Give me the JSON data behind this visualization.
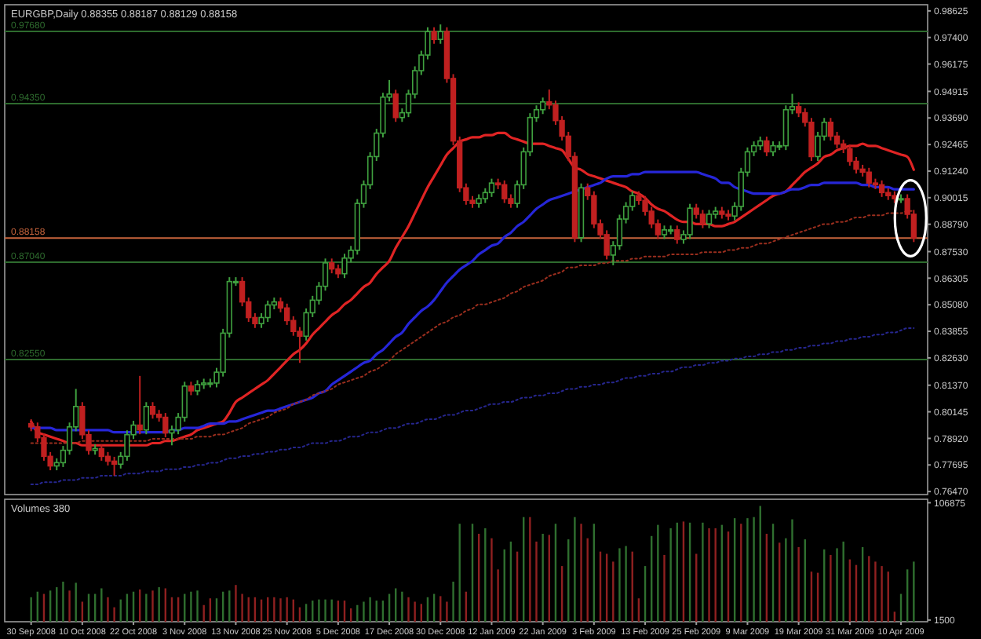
{
  "chart_data": [
    {
      "type": "candlestick",
      "title": "EURGBP,Daily 0.88355 0.88187 0.88129 0.88158",
      "categories": [
        null,
        null,
        null,
        null,
        null,
        null,
        null,
        null,
        null,
        null,
        null,
        null,
        null,
        null,
        null,
        null,
        null,
        null,
        null,
        null,
        null,
        null,
        null,
        null,
        null,
        null,
        null,
        null,
        null,
        null,
        null,
        null,
        null,
        null,
        null,
        null,
        null,
        null,
        null,
        null,
        null,
        null,
        null,
        null,
        null,
        null,
        null,
        null,
        null,
        null,
        null,
        null,
        null,
        null,
        null,
        null,
        null,
        null,
        null,
        null,
        null,
        null,
        null,
        null,
        null,
        null,
        null,
        null,
        null,
        null,
        null,
        null,
        null,
        null,
        null,
        null,
        null,
        null,
        null,
        null,
        null,
        null,
        null,
        null,
        null,
        null,
        null,
        null,
        null,
        null,
        null,
        null,
        null,
        null,
        null,
        null,
        null,
        null,
        null,
        null,
        null,
        null,
        null,
        null,
        null,
        null,
        null,
        null,
        null,
        null,
        null,
        null,
        null,
        null,
        null,
        null,
        null,
        null,
        null,
        null,
        null,
        null,
        null,
        null,
        null,
        null,
        null,
        null,
        null,
        null,
        null,
        null,
        null,
        null,
        null,
        null,
        null,
        null,
        null
      ],
      "ohlc": [
        [
          0.796,
          0.798,
          0.7925,
          0.7945
        ],
        [
          0.7945,
          0.7965,
          0.7875,
          0.7895
        ],
        [
          0.7895,
          0.7915,
          0.7789,
          0.7809
        ],
        [
          0.7809,
          0.7829,
          0.7745,
          0.7765
        ],
        [
          0.7765,
          0.78,
          0.7745,
          0.778
        ],
        [
          0.778,
          0.7857,
          0.776,
          0.7837
        ],
        [
          0.7837,
          0.7965,
          0.7817,
          0.7945
        ],
        [
          0.7945,
          0.812,
          0.7925,
          0.8039
        ],
        [
          0.8039,
          0.8059,
          0.7889,
          0.7909
        ],
        [
          0.7909,
          0.7929,
          0.7817,
          0.7837
        ],
        [
          0.7837,
          0.7865,
          0.7817,
          0.7845
        ],
        [
          0.7845,
          0.7865,
          0.7789,
          0.7809
        ],
        [
          0.7809,
          0.7829,
          0.7767,
          0.7787
        ],
        [
          0.7787,
          0.7807,
          0.772,
          0.7773
        ],
        [
          0.7773,
          0.7829,
          0.7753,
          0.7809
        ],
        [
          0.7809,
          0.7929,
          0.7789,
          0.7909
        ],
        [
          0.7909,
          0.7973,
          0.7889,
          0.7953
        ],
        [
          0.7953,
          0.818,
          0.7911,
          0.7931
        ],
        [
          0.7931,
          0.8059,
          0.7911,
          0.8039
        ],
        [
          0.8039,
          0.8059,
          0.7983,
          0.8003
        ],
        [
          0.8003,
          0.8023,
          0.7969,
          0.7989
        ],
        [
          0.7989,
          0.8009,
          0.7897,
          0.7917
        ],
        [
          0.7917,
          0.7951,
          0.786,
          0.7931
        ],
        [
          0.7931,
          0.8009,
          0.7911,
          0.7989
        ],
        [
          0.7989,
          0.8153,
          0.7969,
          0.8133
        ],
        [
          0.8133,
          0.8153,
          0.8091,
          0.8111
        ],
        [
          0.8111,
          0.816,
          0.8091,
          0.814
        ],
        [
          0.814,
          0.8167,
          0.812,
          0.8147
        ],
        [
          0.8147,
          0.8167,
          0.8127,
          0.8147
        ],
        [
          0.8147,
          0.8217,
          0.8127,
          0.8197
        ],
        [
          0.8197,
          0.8397,
          0.8177,
          0.8377
        ],
        [
          0.8377,
          0.8635,
          0.8357,
          0.8615
        ],
        [
          0.8615,
          0.8635,
          0.8595,
          0.8615
        ],
        [
          0.8615,
          0.8635,
          0.8501,
          0.8521
        ],
        [
          0.8521,
          0.8541,
          0.8429,
          0.8449
        ],
        [
          0.8449,
          0.8469,
          0.8401,
          0.8421
        ],
        [
          0.8421,
          0.8469,
          0.8401,
          0.8449
        ],
        [
          0.8449,
          0.8527,
          0.8429,
          0.8507
        ],
        [
          0.8507,
          0.8541,
          0.8487,
          0.8521
        ],
        [
          0.8521,
          0.8541,
          0.8473,
          0.8493
        ],
        [
          0.8493,
          0.8513,
          0.8415,
          0.8435
        ],
        [
          0.8435,
          0.8455,
          0.8365,
          0.8385
        ],
        [
          0.8385,
          0.8405,
          0.824,
          0.8363
        ],
        [
          0.8363,
          0.8491,
          0.8343,
          0.8471
        ],
        [
          0.8471,
          0.8549,
          0.8451,
          0.8529
        ],
        [
          0.8529,
          0.8613,
          0.8509,
          0.8593
        ],
        [
          0.8593,
          0.8721,
          0.8573,
          0.8701
        ],
        [
          0.8701,
          0.8721,
          0.8653,
          0.8673
        ],
        [
          0.8673,
          0.8693,
          0.8631,
          0.8651
        ],
        [
          0.8651,
          0.8743,
          0.8631,
          0.8723
        ],
        [
          0.8723,
          0.8779,
          0.8703,
          0.8759
        ],
        [
          0.8759,
          0.8995,
          0.8739,
          0.8975
        ],
        [
          0.8975,
          0.9081,
          0.8955,
          0.9061
        ],
        [
          0.9061,
          0.9211,
          0.9041,
          0.9191
        ],
        [
          0.9191,
          0.9319,
          0.9171,
          0.9299
        ],
        [
          0.9299,
          0.9485,
          0.9279,
          0.9465
        ],
        [
          0.9465,
          0.9544,
          0.9445,
          0.9479
        ],
        [
          0.9479,
          0.9499,
          0.9351,
          0.9371
        ],
        [
          0.9371,
          0.9413,
          0.9351,
          0.9393
        ],
        [
          0.9393,
          0.9499,
          0.9373,
          0.9479
        ],
        [
          0.9479,
          0.9607,
          0.9459,
          0.9587
        ],
        [
          0.9587,
          0.9679,
          0.9567,
          0.9659
        ],
        [
          0.9659,
          0.9787,
          0.9639,
          0.9767
        ],
        [
          0.9767,
          0.9787,
          0.9711,
          0.9731
        ],
        [
          0.9731,
          0.98,
          0.9711,
          0.9767
        ],
        [
          0.9767,
          0.9787,
          0.9531,
          0.9551
        ],
        [
          0.9551,
          0.9571,
          0.9243,
          0.9263
        ],
        [
          0.9263,
          0.9283,
          0.9027,
          0.9047
        ],
        [
          0.9047,
          0.9067,
          0.8969,
          0.8989
        ],
        [
          0.8989,
          0.9009,
          0.8955,
          0.8975
        ],
        [
          0.8975,
          0.9017,
          0.8955,
          0.8997
        ],
        [
          0.8997,
          0.9045,
          0.8977,
          0.9025
        ],
        [
          0.9025,
          0.9089,
          0.9005,
          0.9069
        ],
        [
          0.9069,
          0.9089,
          0.9041,
          0.9061
        ],
        [
          0.9061,
          0.9081,
          0.8977,
          0.8997
        ],
        [
          0.8997,
          0.9017,
          0.8955,
          0.8975
        ],
        [
          0.8975,
          0.9081,
          0.8955,
          0.9061
        ],
        [
          0.9061,
          0.9233,
          0.9041,
          0.9213
        ],
        [
          0.9213,
          0.9391,
          0.9193,
          0.9371
        ],
        [
          0.9371,
          0.9427,
          0.9351,
          0.9407
        ],
        [
          0.9407,
          0.9463,
          0.9387,
          0.9443
        ],
        [
          0.9443,
          0.95,
          0.9409,
          0.9429
        ],
        [
          0.9429,
          0.9449,
          0.9337,
          0.9357
        ],
        [
          0.9357,
          0.9377,
          0.9265,
          0.9285
        ],
        [
          0.9285,
          0.9305,
          0.9171,
          0.9191
        ],
        [
          0.9191,
          0.9211,
          0.8797,
          0.8817
        ],
        [
          0.8817,
          0.9067,
          0.8797,
          0.9047
        ],
        [
          0.9047,
          0.9067,
          0.8991,
          0.9011
        ],
        [
          0.9011,
          0.9031,
          0.8861,
          0.8881
        ],
        [
          0.8881,
          0.8901,
          0.8811,
          0.8831
        ],
        [
          0.8831,
          0.8851,
          0.8717,
          0.8737
        ],
        [
          0.8737,
          0.8801,
          0.869,
          0.8781
        ],
        [
          0.8781,
          0.8923,
          0.8761,
          0.8903
        ],
        [
          0.8903,
          0.8981,
          0.8883,
          0.8961
        ],
        [
          0.8961,
          0.9031,
          0.8941,
          0.9011
        ],
        [
          0.9011,
          0.9031,
          0.8969,
          0.8989
        ],
        [
          0.8989,
          0.9009,
          0.8919,
          0.8939
        ],
        [
          0.8939,
          0.8959,
          0.8861,
          0.8881
        ],
        [
          0.8881,
          0.8901,
          0.8811,
          0.8831
        ],
        [
          0.8831,
          0.8873,
          0.8811,
          0.8853
        ],
        [
          0.8853,
          0.8873,
          0.8833,
          0.8853
        ],
        [
          0.8853,
          0.8873,
          0.8789,
          0.8809
        ],
        [
          0.8809,
          0.8851,
          0.8789,
          0.8831
        ],
        [
          0.8831,
          0.8973,
          0.8811,
          0.8953
        ],
        [
          0.8953,
          0.8973,
          0.8905,
          0.8925
        ],
        [
          0.8925,
          0.8945,
          0.8861,
          0.8881
        ],
        [
          0.8881,
          0.8945,
          0.8861,
          0.8925
        ],
        [
          0.8925,
          0.8959,
          0.8905,
          0.8939
        ],
        [
          0.8939,
          0.8959,
          0.8905,
          0.8925
        ],
        [
          0.8925,
          0.8945,
          0.8897,
          0.8917
        ],
        [
          0.8917,
          0.8981,
          0.8897,
          0.8961
        ],
        [
          0.8961,
          0.9139,
          0.8941,
          0.9119
        ],
        [
          0.9119,
          0.9233,
          0.9099,
          0.9213
        ],
        [
          0.9213,
          0.9261,
          0.9193,
          0.9241
        ],
        [
          0.9241,
          0.9283,
          0.9221,
          0.9263
        ],
        [
          0.9263,
          0.9283,
          0.9193,
          0.9213
        ],
        [
          0.9213,
          0.9261,
          0.9193,
          0.9241
        ],
        [
          0.9241,
          0.9261,
          0.9221,
          0.9241
        ],
        [
          0.9241,
          0.9427,
          0.9221,
          0.9407
        ],
        [
          0.9407,
          0.948,
          0.9387,
          0.9421
        ],
        [
          0.9421,
          0.9441,
          0.9373,
          0.9393
        ],
        [
          0.9393,
          0.9413,
          0.9329,
          0.9349
        ],
        [
          0.9349,
          0.9369,
          0.9171,
          0.9191
        ],
        [
          0.9191,
          0.9305,
          0.9171,
          0.9285
        ],
        [
          0.9285,
          0.9369,
          0.9265,
          0.9349
        ],
        [
          0.9349,
          0.9369,
          0.9265,
          0.9285
        ],
        [
          0.9285,
          0.9305,
          0.9229,
          0.9249
        ],
        [
          0.9249,
          0.9269,
          0.9207,
          0.9227
        ],
        [
          0.9227,
          0.9247,
          0.9149,
          0.9169
        ],
        [
          0.9169,
          0.9189,
          0.9113,
          0.9133
        ],
        [
          0.9133,
          0.9153,
          0.9099,
          0.9119
        ],
        [
          0.9119,
          0.9139,
          0.9049,
          0.9069
        ],
        [
          0.9069,
          0.9089,
          0.9041,
          0.9061
        ],
        [
          0.9061,
          0.9081,
          0.9005,
          0.9025
        ],
        [
          0.9025,
          0.9045,
          0.8991,
          0.9011
        ],
        [
          0.9011,
          0.9031,
          0.8977,
          0.8997
        ],
        [
          0.8997,
          0.9017,
          0.8977,
          0.8997
        ],
        [
          0.8997,
          0.9017,
          0.8905,
          0.8925
        ],
        [
          0.8925,
          0.8945,
          0.8797,
          0.8816
        ]
      ],
      "series": [
        {
          "type": "line",
          "color": "#e02424",
          "line_style": "solid",
          "values": [
            0.797,
            0.792,
            0.791,
            0.79,
            0.789,
            0.788,
            0.787,
            0.787,
            0.786,
            0.786,
            0.786,
            0.786,
            0.786,
            0.786,
            0.786,
            0.786,
            0.786,
            0.786,
            0.786,
            0.787,
            0.787,
            0.788,
            0.788,
            0.789,
            0.79,
            0.791,
            0.793,
            0.794,
            0.795,
            0.796,
            0.797,
            0.801,
            0.806,
            0.808,
            0.81,
            0.812,
            0.814,
            0.816,
            0.819,
            0.822,
            0.825,
            0.828,
            0.83,
            0.833,
            0.837,
            0.84,
            0.843,
            0.846,
            0.848,
            0.851,
            0.853,
            0.856,
            0.859,
            0.861,
            0.865,
            0.868,
            0.871,
            0.877,
            0.882,
            0.887,
            0.893,
            0.899,
            0.905,
            0.91,
            0.915,
            0.92,
            0.923,
            0.926,
            0.927,
            0.928,
            0.928,
            0.929,
            0.929,
            0.93,
            0.93,
            0.928,
            0.927,
            0.926,
            0.925,
            0.925,
            0.925,
            0.924,
            0.923,
            0.922,
            0.918,
            0.914,
            0.913,
            0.911,
            0.91,
            0.909,
            0.908,
            0.907,
            0.906,
            0.905,
            0.903,
            0.902,
            0.9,
            0.897,
            0.895,
            0.894,
            0.892,
            0.89,
            0.889,
            0.889,
            0.888,
            0.888,
            0.888,
            0.887,
            0.887,
            0.888,
            0.889,
            0.891,
            0.893,
            0.895,
            0.897,
            0.899,
            0.901,
            0.902,
            0.903,
            0.906,
            0.909,
            0.912,
            0.914,
            0.916,
            0.919,
            0.92,
            0.922,
            0.923,
            0.924,
            0.924,
            0.925,
            0.924,
            0.924,
            0.923,
            0.922,
            0.921,
            0.92,
            0.919,
            0.913
          ]
        },
        {
          "type": "line",
          "color": "#2626d8",
          "line_style": "solid",
          "values": [
            0.794,
            0.794,
            0.794,
            0.794,
            0.793,
            0.793,
            0.793,
            0.793,
            0.793,
            0.793,
            0.793,
            0.793,
            0.793,
            0.792,
            0.792,
            0.792,
            0.792,
            0.792,
            0.792,
            0.792,
            0.792,
            0.792,
            0.793,
            0.793,
            0.794,
            0.794,
            0.794,
            0.795,
            0.796,
            0.796,
            0.796,
            0.797,
            0.797,
            0.798,
            0.799,
            0.8,
            0.801,
            0.802,
            0.802,
            0.803,
            0.804,
            0.805,
            0.806,
            0.807,
            0.808,
            0.81,
            0.811,
            0.814,
            0.816,
            0.818,
            0.82,
            0.822,
            0.824,
            0.825,
            0.828,
            0.83,
            0.833,
            0.836,
            0.838,
            0.842,
            0.845,
            0.848,
            0.85,
            0.853,
            0.857,
            0.861,
            0.864,
            0.867,
            0.869,
            0.871,
            0.874,
            0.876,
            0.878,
            0.879,
            0.882,
            0.884,
            0.887,
            0.889,
            0.892,
            0.895,
            0.897,
            0.899,
            0.9,
            0.901,
            0.902,
            0.903,
            0.904,
            0.905,
            0.906,
            0.907,
            0.909,
            0.91,
            0.91,
            0.91,
            0.911,
            0.911,
            0.912,
            0.912,
            0.912,
            0.912,
            0.912,
            0.912,
            0.912,
            0.912,
            0.912,
            0.911,
            0.91,
            0.909,
            0.907,
            0.907,
            0.905,
            0.904,
            0.903,
            0.902,
            0.902,
            0.902,
            0.902,
            0.902,
            0.903,
            0.904,
            0.904,
            0.905,
            0.906,
            0.906,
            0.907,
            0.907,
            0.907,
            0.907,
            0.907,
            0.907,
            0.906,
            0.906,
            0.905,
            0.905,
            0.905,
            0.904,
            0.904,
            0.904,
            0.904
          ]
        },
        {
          "type": "line",
          "color": "#9a2e1e",
          "line_style": "dotted",
          "values": [
            0.787,
            0.787,
            0.787,
            0.787,
            0.787,
            0.787,
            0.787,
            0.787,
            0.788,
            0.788,
            0.788,
            0.788,
            0.788,
            0.788,
            0.788,
            0.788,
            0.788,
            0.788,
            0.788,
            0.789,
            0.789,
            0.789,
            0.789,
            0.789,
            0.789,
            0.789,
            0.79,
            0.79,
            0.79,
            0.791,
            0.791,
            0.792,
            0.793,
            0.794,
            0.796,
            0.797,
            0.798,
            0.799,
            0.801,
            0.802,
            0.803,
            0.805,
            0.806,
            0.807,
            0.809,
            0.81,
            0.811,
            0.812,
            0.814,
            0.815,
            0.816,
            0.817,
            0.818,
            0.82,
            0.821,
            0.823,
            0.825,
            0.828,
            0.83,
            0.832,
            0.834,
            0.836,
            0.838,
            0.84,
            0.842,
            0.843,
            0.845,
            0.846,
            0.848,
            0.849,
            0.851,
            0.851,
            0.852,
            0.853,
            0.854,
            0.856,
            0.857,
            0.859,
            0.86,
            0.861,
            0.862,
            0.864,
            0.865,
            0.866,
            0.868,
            0.868,
            0.869,
            0.869,
            0.869,
            0.87,
            0.87,
            0.871,
            0.871,
            0.871,
            0.872,
            0.872,
            0.873,
            0.873,
            0.873,
            0.873,
            0.874,
            0.874,
            0.874,
            0.874,
            0.874,
            0.875,
            0.875,
            0.875,
            0.875,
            0.876,
            0.876,
            0.877,
            0.877,
            0.878,
            0.879,
            0.879,
            0.88,
            0.881,
            0.882,
            0.883,
            0.884,
            0.885,
            0.886,
            0.887,
            0.888,
            0.888,
            0.889,
            0.889,
            0.89,
            0.891,
            0.891,
            0.892,
            0.892,
            0.892,
            0.893,
            0.893,
            0.893,
            0.894,
            0.894
          ]
        },
        {
          "type": "line",
          "color": "#26268e",
          "line_style": "dotted",
          "values": [
            0.768,
            0.768,
            0.769,
            0.769,
            0.769,
            0.77,
            0.77,
            0.77,
            0.771,
            0.771,
            0.771,
            0.772,
            0.772,
            0.772,
            0.772,
            0.773,
            0.773,
            0.773,
            0.774,
            0.774,
            0.774,
            0.775,
            0.775,
            0.775,
            0.776,
            0.776,
            0.777,
            0.777,
            0.778,
            0.778,
            0.779,
            0.78,
            0.78,
            0.781,
            0.781,
            0.782,
            0.782,
            0.783,
            0.783,
            0.784,
            0.784,
            0.785,
            0.785,
            0.786,
            0.787,
            0.787,
            0.787,
            0.788,
            0.788,
            0.789,
            0.79,
            0.79,
            0.791,
            0.792,
            0.792,
            0.793,
            0.794,
            0.794,
            0.795,
            0.796,
            0.796,
            0.797,
            0.798,
            0.798,
            0.799,
            0.8,
            0.8,
            0.801,
            0.802,
            0.802,
            0.803,
            0.804,
            0.805,
            0.805,
            0.806,
            0.806,
            0.807,
            0.808,
            0.808,
            0.809,
            0.809,
            0.81,
            0.81,
            0.811,
            0.812,
            0.812,
            0.813,
            0.813,
            0.814,
            0.814,
            0.815,
            0.815,
            0.816,
            0.817,
            0.817,
            0.818,
            0.818,
            0.819,
            0.819,
            0.82,
            0.82,
            0.821,
            0.822,
            0.822,
            0.823,
            0.823,
            0.824,
            0.824,
            0.825,
            0.825,
            0.826,
            0.826,
            0.827,
            0.827,
            0.828,
            0.828,
            0.829,
            0.829,
            0.83,
            0.83,
            0.831,
            0.831,
            0.832,
            0.832,
            0.833,
            0.833,
            0.834,
            0.834,
            0.835,
            0.835,
            0.836,
            0.836,
            0.837,
            0.837,
            0.838,
            0.838,
            0.839,
            0.84,
            0.84
          ]
        }
      ],
      "ylim": [
        0.7633,
        0.9891
      ],
      "yticks": [
        {
          "value": 0.98625,
          "label": "0.98625"
        },
        {
          "value": 0.974,
          "label": "0.97400"
        },
        {
          "value": 0.96175,
          "label": "0.96175"
        },
        {
          "value": 0.94915,
          "label": "0.94915"
        },
        {
          "value": 0.9369,
          "label": "0.93690"
        },
        {
          "value": 0.92465,
          "label": "0.92465"
        },
        {
          "value": 0.9124,
          "label": "0.91240"
        },
        {
          "value": 0.90015,
          "label": "0.90015"
        },
        {
          "value": 0.8879,
          "label": "0.88790"
        },
        {
          "value": 0.8753,
          "label": "0.87530"
        },
        {
          "value": 0.86305,
          "label": "0.86305"
        },
        {
          "value": 0.8508,
          "label": "0.85080"
        },
        {
          "value": 0.83855,
          "label": "0.83855"
        },
        {
          "value": 0.8263,
          "label": "0.82630"
        },
        {
          "value": 0.8137,
          "label": "0.81370"
        },
        {
          "value": 0.80145,
          "label": "0.80145"
        },
        {
          "value": 0.7892,
          "label": "0.78920"
        },
        {
          "value": 0.77695,
          "label": "0.77695"
        },
        {
          "value": 0.7647,
          "label": "0.76470"
        }
      ],
      "ref_lines": [
        {
          "axis": "y",
          "value": 0.9768,
          "label": "0.97680",
          "color": "#2e6b2e"
        },
        {
          "axis": "y",
          "value": 0.9435,
          "label": "0.94350",
          "color": "#2e6b2e"
        },
        {
          "axis": "y",
          "value": 0.8704,
          "label": "0.87040",
          "color": "#2e6b2e"
        },
        {
          "axis": "y",
          "value": 0.8255,
          "label": "0.82550",
          "color": "#2e6b2e"
        },
        {
          "axis": "y",
          "value": 0.88158,
          "label": "0.88158",
          "color": "#c8643c"
        }
      ]
    },
    {
      "type": "bar",
      "title": "Volumes 380",
      "categories": [
        "30 Sep 2008",
        null,
        null,
        null,
        null,
        null,
        null,
        null,
        "10 Oct 2008",
        null,
        null,
        null,
        null,
        null,
        null,
        null,
        "22 Oct 2008",
        null,
        null,
        null,
        null,
        null,
        null,
        null,
        "3 Nov 2008",
        null,
        null,
        null,
        null,
        null,
        null,
        null,
        "13 Nov 2008",
        null,
        null,
        null,
        null,
        null,
        null,
        null,
        "25 Nov 2008",
        null,
        null,
        null,
        null,
        null,
        null,
        null,
        "5 Dec 2008",
        null,
        null,
        null,
        null,
        null,
        null,
        null,
        "17 Dec 2008",
        null,
        null,
        null,
        null,
        null,
        null,
        null,
        "30 Dec 2008",
        null,
        null,
        null,
        null,
        null,
        null,
        null,
        "12 Jan 2009",
        null,
        null,
        null,
        null,
        null,
        null,
        null,
        "22 Jan 2009",
        null,
        null,
        null,
        null,
        null,
        null,
        null,
        "3 Feb 2009",
        null,
        null,
        null,
        null,
        null,
        null,
        null,
        "13 Feb 2009",
        null,
        null,
        null,
        null,
        null,
        null,
        null,
        "25 Feb 2009",
        null,
        null,
        null,
        null,
        null,
        null,
        null,
        "9 Mar 2009",
        null,
        null,
        null,
        null,
        null,
        null,
        null,
        "19 Mar 2009",
        null,
        null,
        null,
        null,
        null,
        null,
        null,
        "31 Mar 2009",
        null,
        null,
        null,
        null,
        null,
        null,
        null,
        "10 Apr 2009",
        null,
        null
      ],
      "values": [
        22000,
        27000,
        25000,
        28000,
        31000,
        36000,
        28000,
        35000,
        18000,
        25000,
        25000,
        30000,
        22000,
        13000,
        20000,
        25000,
        27000,
        29000,
        25000,
        28000,
        31000,
        30000,
        22000,
        22000,
        25000,
        27000,
        28000,
        15000,
        21000,
        21000,
        27000,
        28000,
        33000,
        25000,
        22000,
        22000,
        20000,
        22000,
        22000,
        21000,
        22000,
        20000,
        13000,
        16000,
        19000,
        20000,
        20000,
        20000,
        19000,
        19000,
        12000,
        15000,
        18000,
        22000,
        19000,
        19000,
        25000,
        30000,
        27000,
        22000,
        18000,
        16000,
        22000,
        25000,
        23000,
        18000,
        36000,
        88000,
        27000,
        88000,
        79000,
        84000,
        75000,
        47000,
        65000,
        72000,
        63000,
        94000,
        94000,
        72000,
        79000,
        78000,
        88000,
        50000,
        74000,
        94000,
        88000,
        75000,
        88000,
        63000,
        61000,
        54000,
        66000,
        68000,
        63000,
        21000,
        50000,
        77000,
        87000,
        60000,
        84000,
        89000,
        90000,
        89000,
        61000,
        89000,
        84000,
        84000,
        87000,
        81000,
        93000,
        88000,
        93000,
        94000,
        104000,
        79000,
        88000,
        71000,
        75000,
        92000,
        67000,
        74000,
        45000,
        44000,
        65000,
        60000,
        66000,
        72000,
        56000,
        51000,
        67000,
        59000,
        54000,
        50000,
        45000,
        9000,
        25000,
        47000,
        54000
      ],
      "colors": [
        "#2f6f2f",
        "#2f6f2f",
        "#8f2020",
        "#2f6f2f",
        "#2f6f2f",
        "#2f6f2f",
        "#8f2020",
        "#2f6f2f",
        "#8f2020",
        "#2f6f2f",
        "#2f6f2f",
        "#2f6f2f",
        "#8f2020",
        "#8f2020",
        "#2f6f2f",
        "#2f6f2f",
        "#2f6f2f",
        "#8f2020",
        "#2f6f2f",
        "#8f2020",
        "#2f6f2f",
        "#8f2020",
        "#8f2020",
        "#8f2020",
        "#2f6f2f",
        "#2f6f2f",
        "#2f6f2f",
        "#8f2020",
        "#8f2020",
        "#2f6f2f",
        "#2f6f2f",
        "#2f6f2f",
        "#8f2020",
        "#8f2020",
        "#8f2020",
        "#8f2020",
        "#8f2020",
        "#8f2020",
        "#8f2020",
        "#8f2020",
        "#8f2020",
        "#8f2020",
        "#8f2020",
        "#2f6f2f",
        "#2f6f2f",
        "#2f6f2f",
        "#2f6f2f",
        "#2f6f2f",
        "#8f2020",
        "#8f2020",
        "#8f2020",
        "#2f6f2f",
        "#2f6f2f",
        "#2f6f2f",
        "#2f6f2f",
        "#2f6f2f",
        "#2f6f2f",
        "#2f6f2f",
        "#2f6f2f",
        "#8f2020",
        "#8f2020",
        "#8f2020",
        "#2f6f2f",
        "#2f6f2f",
        "#8f2020",
        "#8f2020",
        "#2f6f2f",
        "#2f6f2f",
        "#8f2020",
        "#2f6f2f",
        "#8f2020",
        "#2f6f2f",
        "#8f2020",
        "#8f2020",
        "#2f6f2f",
        "#2f6f2f",
        "#8f2020",
        "#2f6f2f",
        "#8f2020",
        "#8f2020",
        "#2f6f2f",
        "#8f2020",
        "#2f6f2f",
        "#8f2020",
        "#2f6f2f",
        "#2f6f2f",
        "#8f2020",
        "#8f2020",
        "#2f6f2f",
        "#8f2020",
        "#8f2020",
        "#8f2020",
        "#2f6f2f",
        "#2f6f2f",
        "#8f2020",
        "#8f2020",
        "#2f6f2f",
        "#2f6f2f",
        "#2f6f2f",
        "#8f2020",
        "#2f6f2f",
        "#2f6f2f",
        "#8f2020",
        "#2f6f2f",
        "#8f2020",
        "#2f6f2f",
        "#8f2020",
        "#8f2020",
        "#2f6f2f",
        "#8f2020",
        "#2f6f2f",
        "#8f2020",
        "#2f6f2f",
        "#2f6f2f",
        "#2f6f2f",
        "#8f2020",
        "#2f6f2f",
        "#8f2020",
        "#2f6f2f",
        "#2f6f2f",
        "#8f2020",
        "#2f6f2f",
        "#8f2020",
        "#8f2020",
        "#2f6f2f",
        "#8f2020",
        "#2f6f2f",
        "#2f6f2f",
        "#8f2020",
        "#8f2020",
        "#2f6f2f",
        "#8f2020",
        "#8f2020",
        "#8f2020",
        "#8f2020",
        "#8f2020",
        "#2f6f2f",
        "#2f6f2f",
        "#2f6f2f"
      ],
      "ylim": [
        0,
        110000
      ],
      "yticks": [
        1500,
        106875
      ]
    }
  ]
}
